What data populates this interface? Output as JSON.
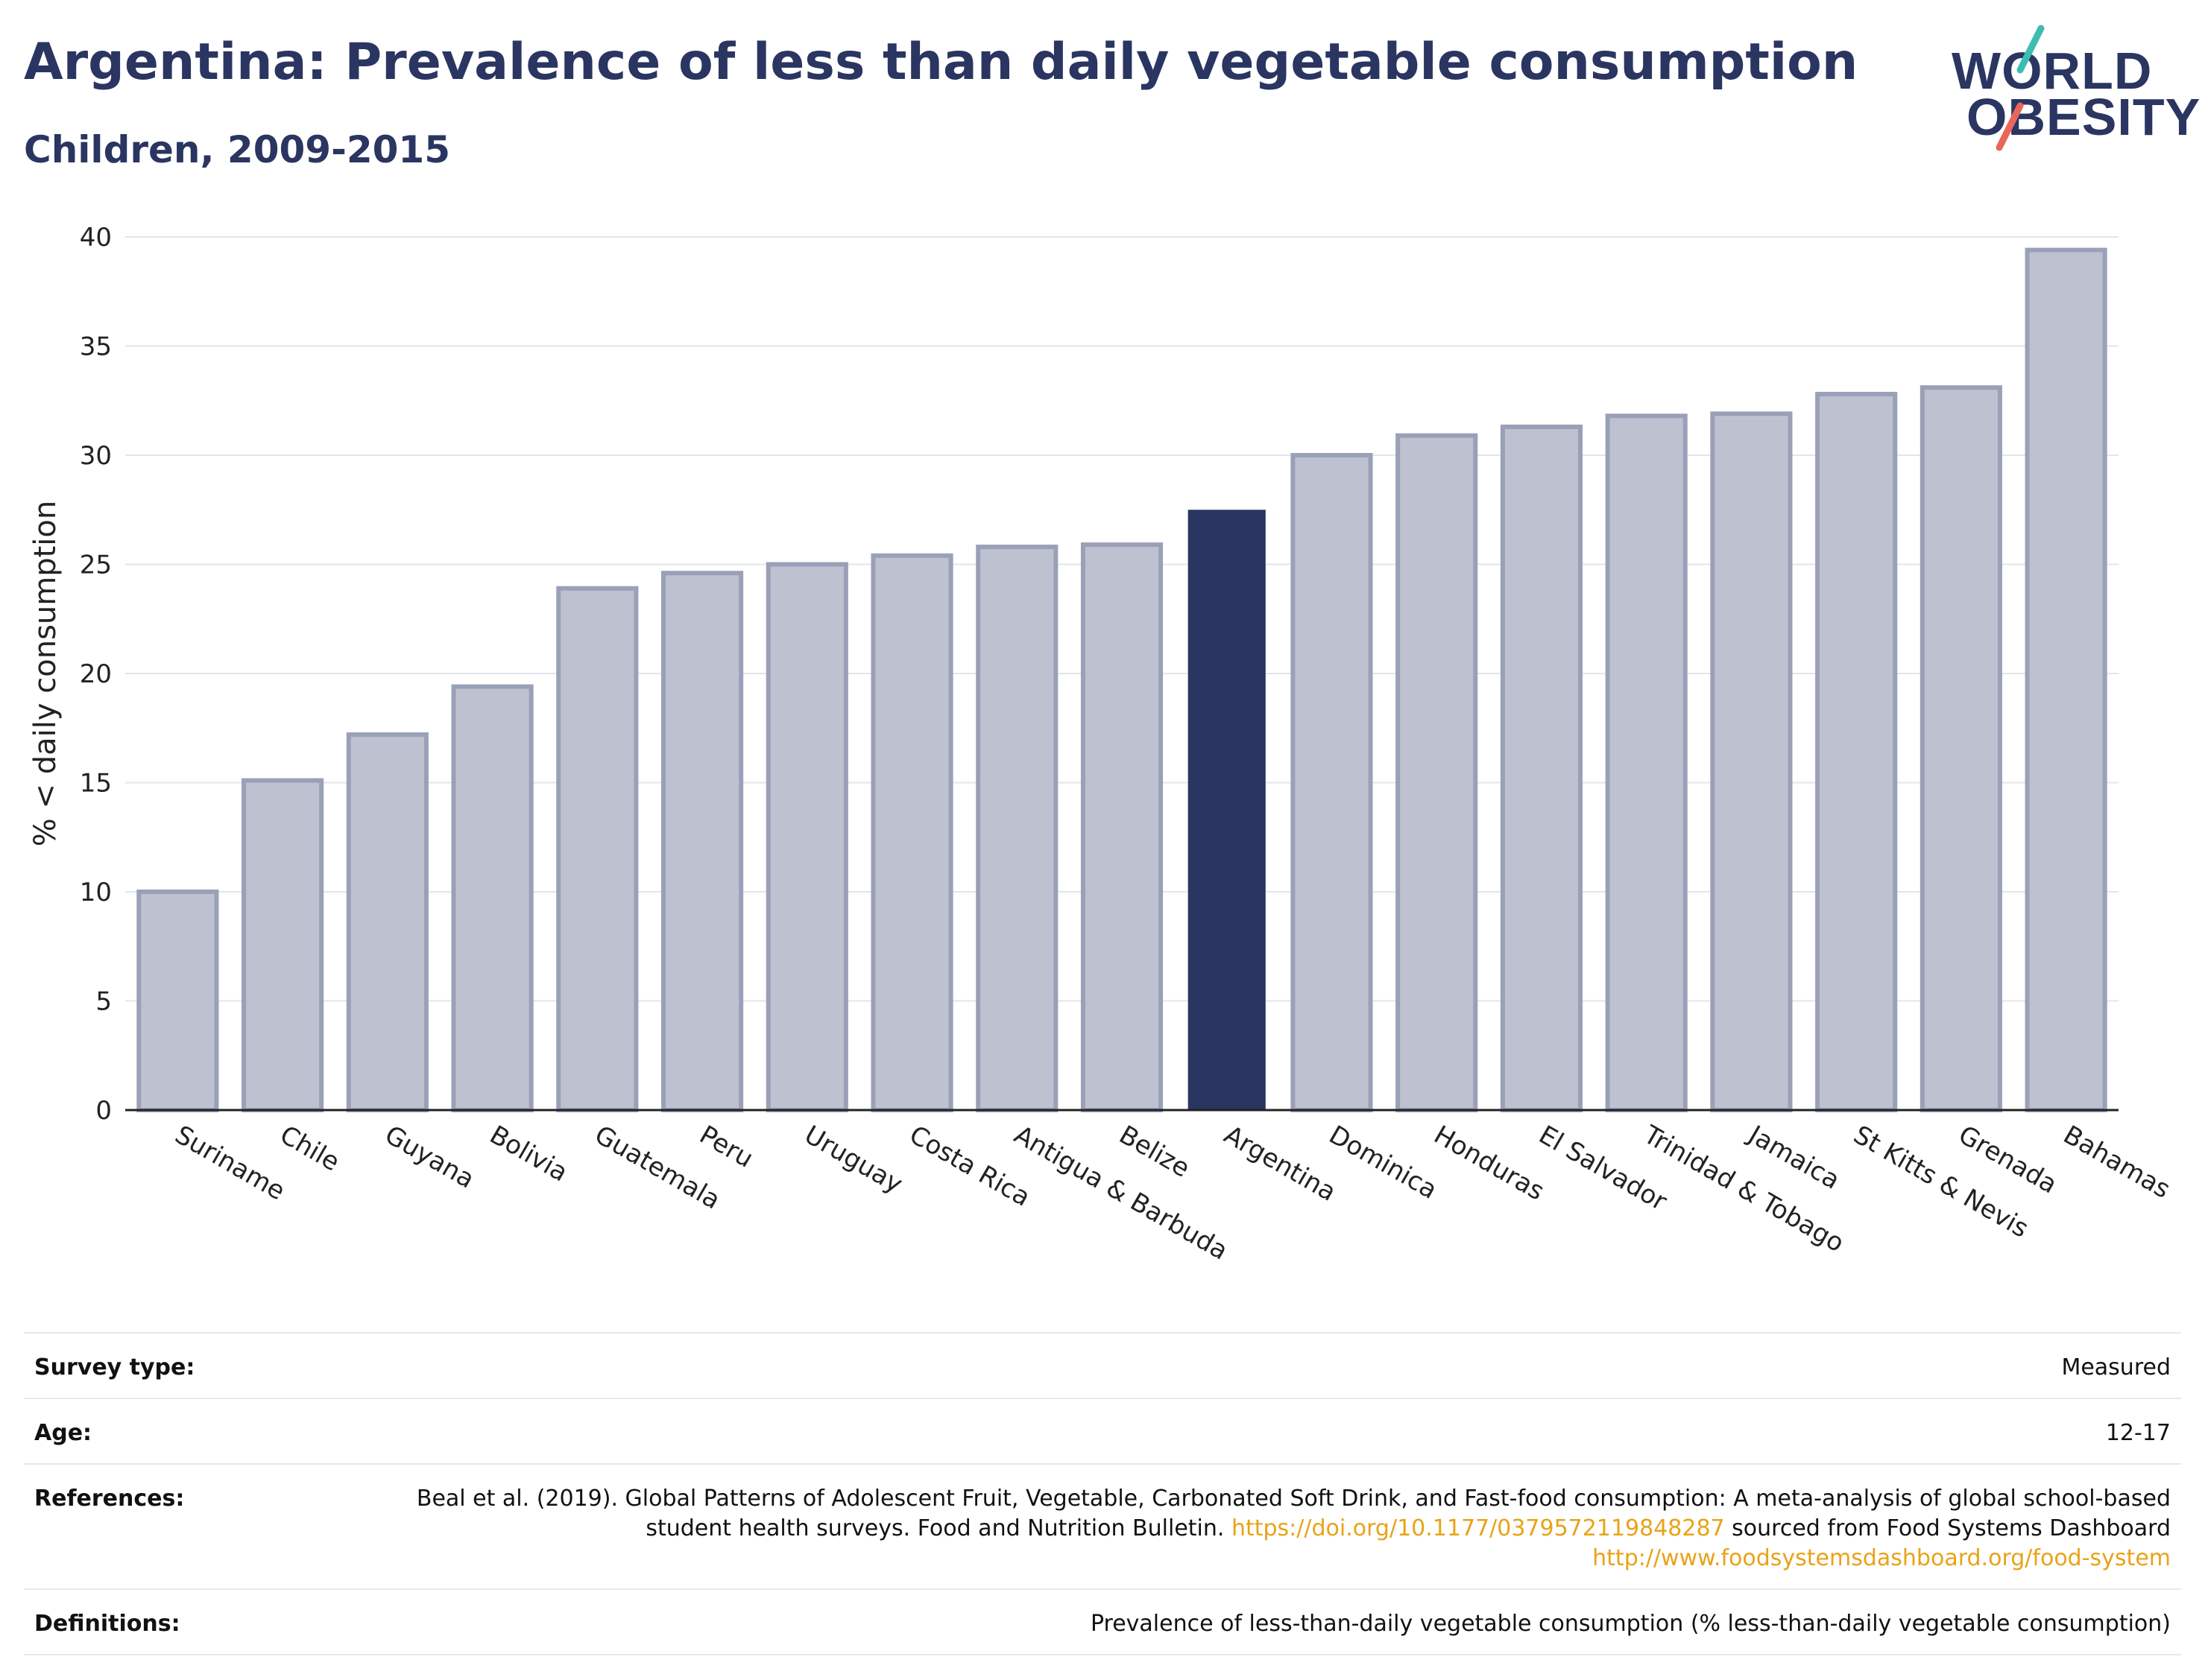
{
  "header": {
    "title": "Argentina: Prevalence of less than daily vegetable consumption",
    "subtitle": "Children, 2009-2015"
  },
  "logo": {
    "line1": "WORLD",
    "line2": "OBESITY",
    "accent_teal": "#3dbdb1",
    "accent_coral": "#e8675a"
  },
  "colors": {
    "highlight_bar": "#2a3561",
    "other_bar": "#bec2d0",
    "other_bar_border": "#9aa0b7"
  },
  "chart_data": {
    "type": "bar",
    "ylabel": "% < daily consumption",
    "ylim": [
      0,
      40
    ],
    "yticks": [
      0,
      5,
      10,
      15,
      20,
      25,
      30,
      35,
      40
    ],
    "grid": true,
    "highlight": "Argentina",
    "categories": [
      "Suriname",
      "Chile",
      "Guyana",
      "Bolivia",
      "Guatemala",
      "Peru",
      "Uruguay",
      "Costa Rica",
      "Antigua & Barbuda",
      "Belize",
      "Argentina",
      "Dominica",
      "Honduras",
      "El Salvador",
      "Trinidad & Tobago",
      "Jamaica",
      "St Kitts & Nevis",
      "Grenada",
      "Bahamas"
    ],
    "values": [
      10.0,
      15.1,
      17.2,
      19.4,
      23.9,
      24.6,
      25.0,
      25.4,
      25.8,
      25.9,
      27.5,
      30.0,
      30.9,
      31.3,
      31.8,
      31.9,
      32.8,
      33.1,
      39.4
    ]
  },
  "meta": {
    "survey_type_label": "Survey type:",
    "survey_type_value": "Measured",
    "age_label": "Age:",
    "age_value": "12-17",
    "references_label": "References:",
    "references_text1": "Beal et al. (2019). Global Patterns of Adolescent Fruit, Vegetable, Carbonated Soft Drink, and Fast-food consumption: A meta-analysis of global school-based student health surveys. Food and Nutrition Bulletin. ",
    "references_link1": "https://doi.org/10.1177/0379572119848287",
    "references_text2": " sourced from Food Systems Dashboard ",
    "references_link2": "http://www.foodsystemsdashboard.org/food-system",
    "definitions_label": "Definitions:",
    "definitions_value": "Prevalence of less-than-daily vegetable consumption (% less-than-daily vegetable consumption)"
  }
}
